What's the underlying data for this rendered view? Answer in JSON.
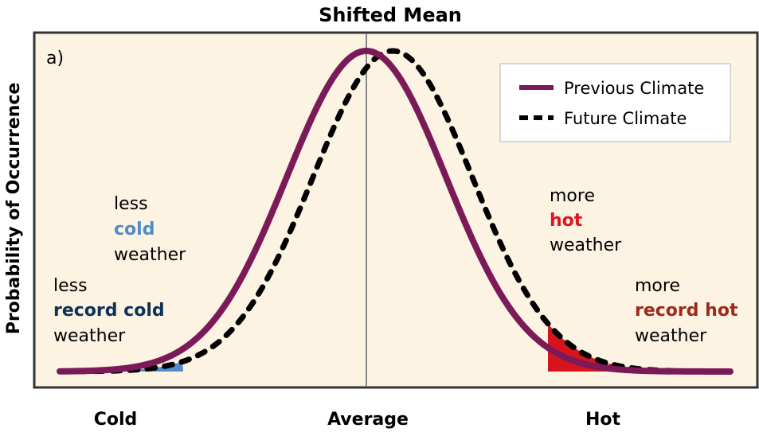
{
  "chart_data": {
    "type": "line",
    "title": "Shifted Mean",
    "panel_label": "a)",
    "ylabel": "Probability of Occurrence",
    "xlabel_ticks": [
      "Cold",
      "Average",
      "Hot"
    ],
    "xlim": [
      -3.85,
      4.58
    ],
    "ylim": [
      0,
      1.0
    ],
    "series": [
      {
        "name": "Previous Climate",
        "mean": 0,
        "sd": 1,
        "color": "#7b1a58",
        "style": "solid"
      },
      {
        "name": "Future Climate",
        "mean": 0.33,
        "sd": 1,
        "color": "#000000",
        "style": "dashed"
      }
    ],
    "shaded_regions": [
      {
        "name": "less record cold",
        "from": -3.85,
        "to": -2.3,
        "color": "#4f8cc9"
      },
      {
        "name": "more hot",
        "from": 2.28,
        "to": 3.05,
        "color": "#d7141c"
      },
      {
        "name": "more record hot",
        "from": 3.05,
        "to": 3.45,
        "color": "#8e1c1c"
      }
    ],
    "annotations": [
      {
        "lines": [
          "less",
          "cold",
          "weather"
        ],
        "highlight_color": "#4f8cc9"
      },
      {
        "lines": [
          "less",
          "record cold",
          "weather"
        ],
        "highlight_color": "#0d3157"
      },
      {
        "lines": [
          "more",
          "hot",
          "weather"
        ],
        "highlight_color": "#e0141e"
      },
      {
        "lines": [
          "more",
          "record hot",
          "weather"
        ],
        "highlight_color": "#9b2a1f"
      }
    ],
    "legend": {
      "placement": "top-right",
      "entries": [
        "Previous Climate",
        "Future Climate"
      ]
    },
    "colors": {
      "background": "#fdf3e3",
      "frame": "#333333",
      "mean_line": "#888888"
    }
  }
}
